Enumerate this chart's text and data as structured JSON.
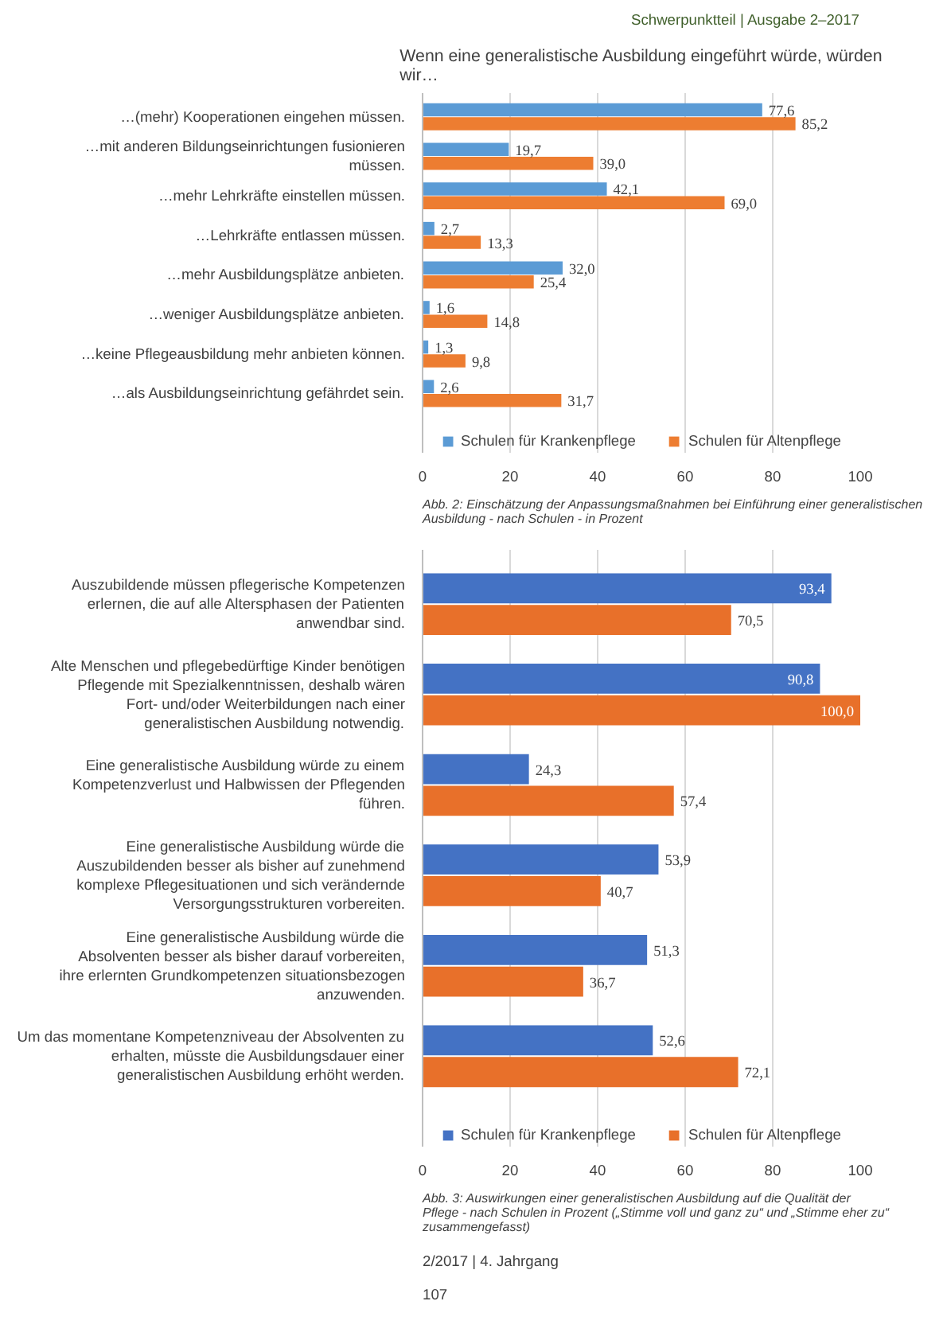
{
  "chart_data": [
    {
      "type": "bar",
      "orientation": "horizontal",
      "title": "Wenn eine generalistische Ausbildung eingeführt würde, würden wir…",
      "categories": [
        "…(mehr) Kooperationen eingehen müssen.",
        "…mit anderen Bildungseinrichtungen fusionieren müssen.",
        "…mehr Lehrkräfte einstellen müssen.",
        "…Lehrkräfte entlassen müssen.",
        "…mehr Ausbildungsplätze anbieten.",
        "…weniger Ausbildungsplätze anbieten.",
        "…keine Pflegeausbildung mehr anbieten können.",
        "…als Ausbildungseinrichtung gefährdet sein."
      ],
      "series": [
        {
          "name": "Schulen für Krankenpflege",
          "color": "#5b9bd5",
          "values": [
            77.6,
            19.7,
            42.1,
            2.7,
            32.0,
            1.6,
            1.3,
            2.6
          ],
          "value_labels": [
            "77,6",
            "19,7",
            "42,1",
            "2,7",
            "32,0",
            "1,6",
            "1,3",
            "2,6"
          ]
        },
        {
          "name": "Schulen für Altenpflege",
          "color": "#ed7d31",
          "values": [
            85.2,
            39.0,
            69.0,
            13.3,
            25.4,
            14.8,
            9.8,
            31.7
          ],
          "value_labels": [
            "85,2",
            "39,0",
            "69,0",
            "13,3",
            "25,4",
            "14,8",
            "9,8",
            "31,7"
          ]
        }
      ],
      "xlim": [
        0,
        100
      ],
      "xticks": [
        0,
        20,
        40,
        60,
        80,
        100
      ],
      "grid": "x",
      "legend": "bottom",
      "annotations": [
        "Schwerpunktteil | Ausgabe 2–2017",
        "Abb. 2: Einschätzung der Anpassungsmaßnahmen bei Einführung einer generalistischen Ausbildung - nach Schulen - in Prozent"
      ]
    },
    {
      "type": "bar",
      "orientation": "horizontal",
      "categories": [
        "Auszubildende müssen pflegerische Kompetenzen erlernen, die auf alle Altersphasen der Patienten anwendbar sind.",
        "Alte Menschen und pflegebedürftige Kinder benötigen Pflegende mit Spezialkenntnissen, deshalb wären Fort- und/oder Weiterbildungen nach einer generalistischen Ausbildung notwendig.",
        "Eine generalistische Ausbildung würde zu einem Kompetenzverlust und Halbwissen der Pflegenden führen.",
        "Eine generalistische Ausbildung würde die Auszubildenden besser als bisher auf zunehmend komplexe Pflegesituationen und sich verändernde Versorgungsstrukturen vorbereiten.",
        "Eine generalistische Ausbildung würde die Absolventen besser als bisher darauf vorbereiten, ihre erlernten Grundkompetenzen situationsbezogen anzuwenden.",
        "Um das momentane Kompetenzniveau der Absolventen zu erhalten, müsste die Ausbildungsdauer einer generalistischen Ausbildung erhöht werden."
      ],
      "series": [
        {
          "name": "Schulen für Krankenpflege",
          "color": "#4472c4",
          "values": [
            93.4,
            90.8,
            24.3,
            53.9,
            51.3,
            52.6
          ],
          "value_labels": [
            "93,4",
            "90,8",
            "24,3",
            "53,9",
            "51,3",
            "52,6"
          ]
        },
        {
          "name": "Schulen für Altenpflege",
          "color": "#e8702a",
          "values": [
            70.5,
            100.0,
            57.4,
            40.7,
            36.7,
            72.1
          ],
          "value_labels": [
            "70,5",
            "100,0",
            "57,4",
            "40,7",
            "36,7",
            "72,1"
          ]
        }
      ],
      "xlim": [
        0,
        100
      ],
      "xticks": [
        0,
        20,
        40,
        60,
        80,
        100
      ],
      "grid": "x",
      "legend": "bottom",
      "annotations": [
        "Abb. 3: Auswirkungen einer generalistischen Ausbildung auf die Qualität der Pflege - nach Schulen in Prozent („Stimme voll und ganz zu“ und „Stimme eher zu“ zusammengefasst)",
        "2/2017 | 4. Jahrgang",
        "107"
      ]
    }
  ]
}
